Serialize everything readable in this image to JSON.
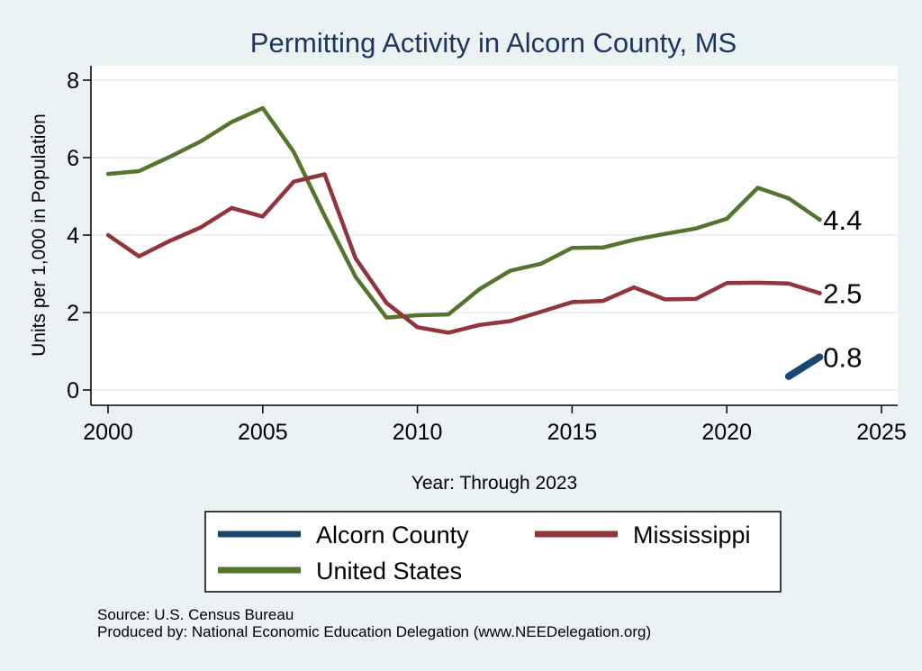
{
  "chart_data": {
    "type": "line",
    "title": "Permitting Activity in Alcorn County, MS",
    "xlabel": "Year: Through 2023",
    "ylabel": "Units per 1,000 in Population",
    "xlim": [
      2000,
      2025
    ],
    "ylim": [
      0,
      8
    ],
    "x_ticks": [
      2000,
      2005,
      2010,
      2015,
      2020,
      2025
    ],
    "y_ticks": [
      0,
      2,
      4,
      6,
      8
    ],
    "grid": true,
    "legend_position": "bottom",
    "series": [
      {
        "name": "Alcorn County",
        "color": "#1a476f",
        "x": [
          2022,
          2023
        ],
        "values": [
          0.35,
          0.85
        ],
        "end_label": "0.8"
      },
      {
        "name": "Mississippi",
        "color": "#90353b",
        "x": [
          2000,
          2001,
          2002,
          2003,
          2004,
          2005,
          2006,
          2007,
          2008,
          2009,
          2010,
          2011,
          2012,
          2013,
          2014,
          2015,
          2016,
          2017,
          2018,
          2019,
          2020,
          2021,
          2022,
          2023
        ],
        "values": [
          4.0,
          3.45,
          3.85,
          4.2,
          4.7,
          4.48,
          5.38,
          5.57,
          3.4,
          2.25,
          1.62,
          1.48,
          1.68,
          1.78,
          2.02,
          2.27,
          2.3,
          2.65,
          2.34,
          2.35,
          2.76,
          2.77,
          2.75,
          2.5
        ],
        "end_label": "2.5"
      },
      {
        "name": "United States",
        "color": "#55752f",
        "x": [
          2000,
          2001,
          2002,
          2003,
          2004,
          2005,
          2006,
          2007,
          2008,
          2009,
          2010,
          2011,
          2012,
          2013,
          2014,
          2015,
          2016,
          2017,
          2018,
          2019,
          2020,
          2021,
          2022,
          2023
        ],
        "values": [
          5.58,
          5.65,
          6.02,
          6.42,
          6.92,
          7.28,
          6.15,
          4.5,
          2.92,
          1.87,
          1.93,
          1.95,
          2.6,
          3.08,
          3.26,
          3.67,
          3.68,
          3.88,
          4.03,
          4.17,
          4.42,
          5.22,
          4.95,
          4.4
        ],
        "end_label": "4.4"
      }
    ]
  },
  "footer": {
    "source": "Source: U.S. Census Bureau",
    "produced_by": "Produced by: National Economic Education Delegation (www.NEEDelegation.org)"
  }
}
